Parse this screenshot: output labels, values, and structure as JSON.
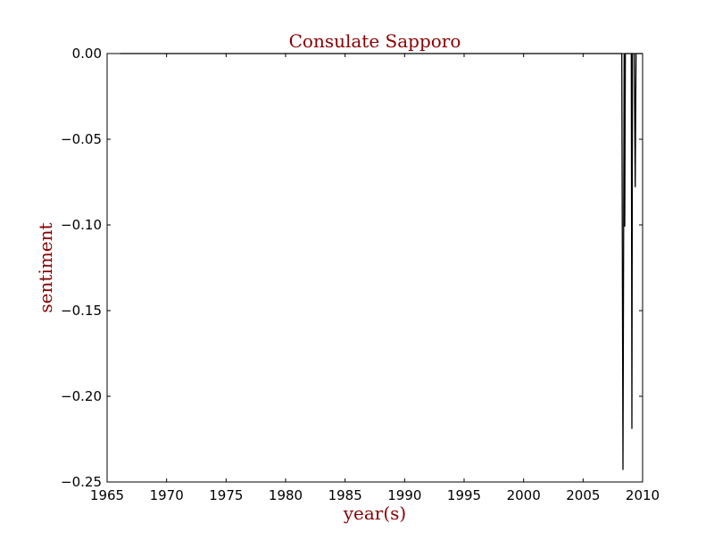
{
  "chart_data": {
    "type": "line",
    "title": "Consulate Sapporo",
    "xlabel": "year(s)",
    "ylabel": "sentiment",
    "xlim": [
      1965,
      2010
    ],
    "ylim": [
      -0.25,
      0.0
    ],
    "x_ticks": [
      1965,
      1970,
      1975,
      1980,
      1985,
      1990,
      1995,
      2000,
      2005,
      2010
    ],
    "x_tick_labels": [
      "1965",
      "1970",
      "1975",
      "1980",
      "1985",
      "1990",
      "1995",
      "2000",
      "2005",
      "2010"
    ],
    "y_ticks": [
      0.0,
      -0.05,
      -0.1,
      -0.15,
      -0.2,
      -0.25
    ],
    "y_tick_labels": [
      "0.00",
      "−0.05",
      "−0.10",
      "−0.15",
      "−0.20",
      "−0.25"
    ],
    "grid": false,
    "title_color": "#8b0000",
    "label_color": "#8b0000",
    "line_color": "#000000",
    "series": [
      {
        "x": [
          1966.1,
          2008.25,
          2008.35,
          2008.45,
          2008.5,
          2008.55,
          2009.05,
          2009.1,
          2009.15,
          2009.3,
          2009.38,
          2009.45,
          2009.5,
          2010.0
        ],
        "y": [
          0.0,
          0.0,
          -0.243,
          -0.0,
          -0.101,
          0.0,
          0.0,
          -0.219,
          0.0,
          0.0,
          -0.078,
          0.0,
          0.0,
          0.0
        ]
      }
    ]
  }
}
